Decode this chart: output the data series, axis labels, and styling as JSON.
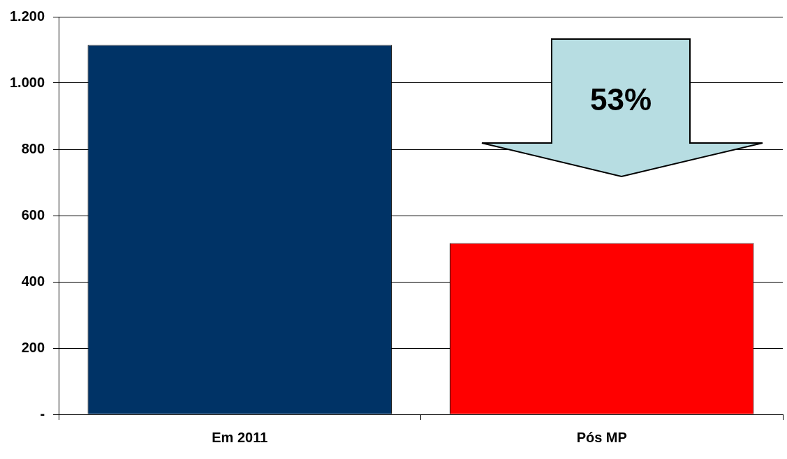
{
  "chart_data": {
    "type": "bar",
    "categories": [
      "Em 2011",
      "Pós MP"
    ],
    "values": [
      1115,
      517
    ],
    "colors": [
      "#003366",
      "#ff0000"
    ],
    "ylim": [
      0,
      1200
    ],
    "yticks": [
      {
        "value": 0,
        "label": "-"
      },
      200,
      400,
      600,
      800,
      {
        "value": 1000,
        "label": "1.000"
      },
      {
        "value": 1200,
        "label": "1.200"
      }
    ],
    "grid": "y",
    "legend": false,
    "annotations": [
      "53%"
    ]
  }
}
